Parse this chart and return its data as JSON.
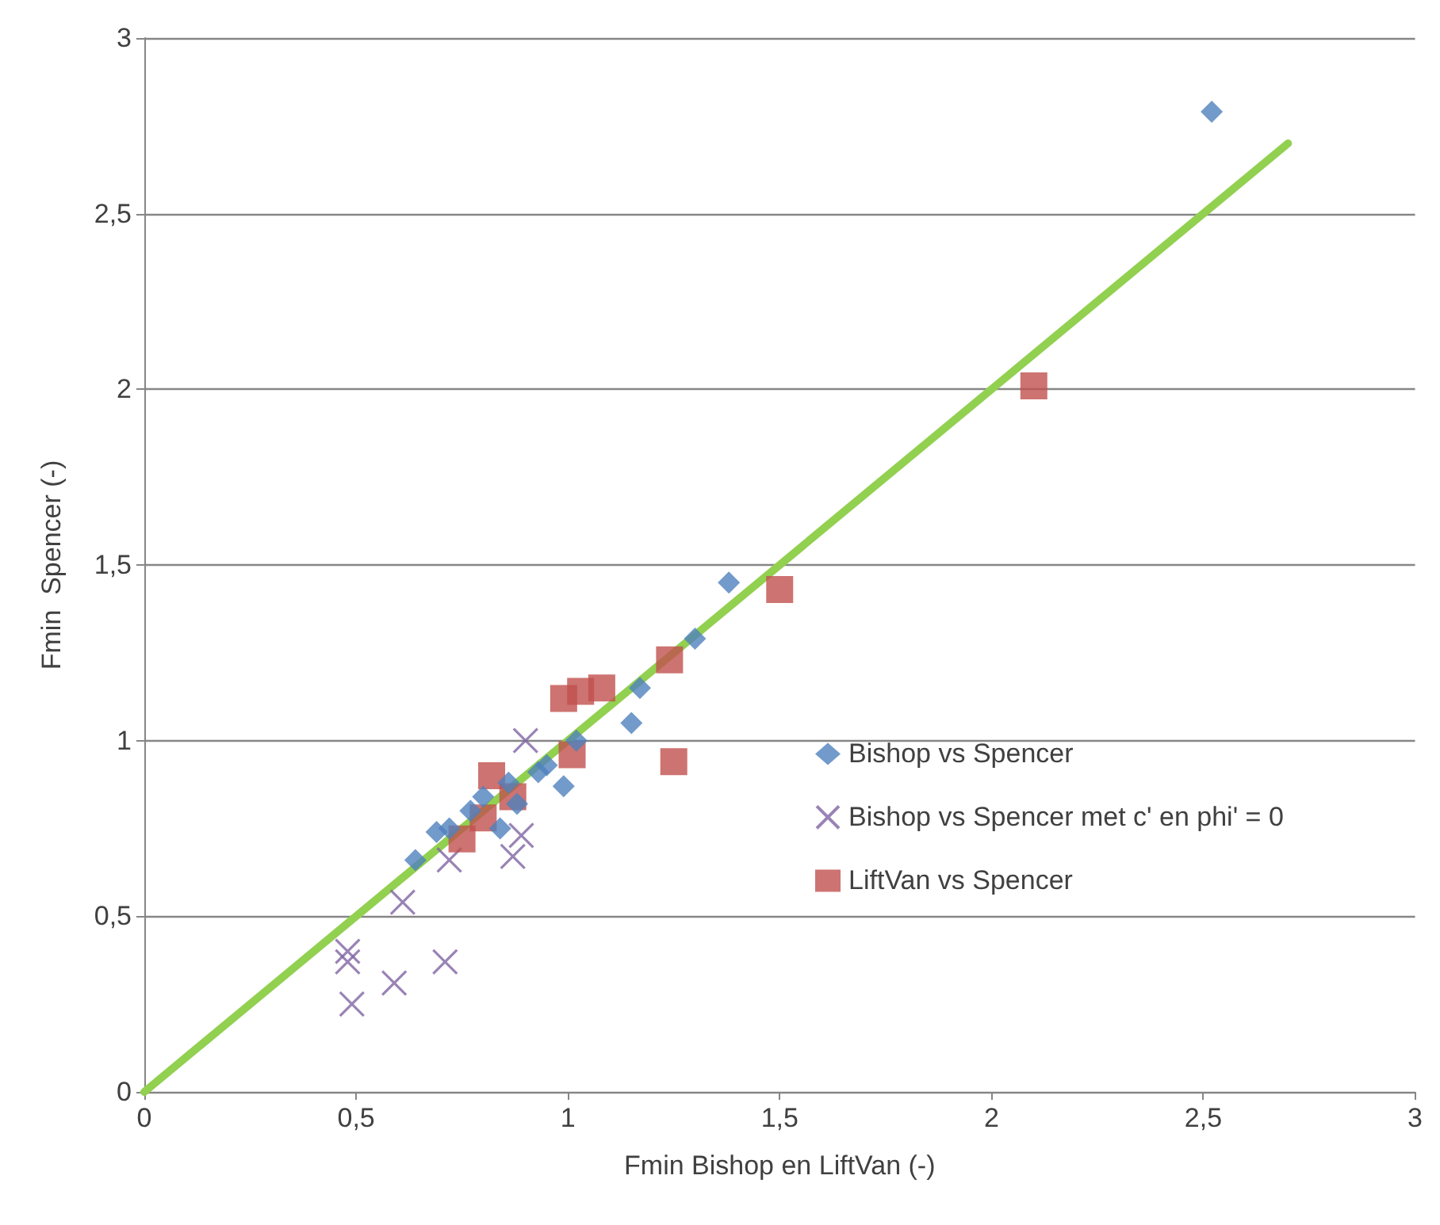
{
  "chart_data": {
    "type": "scatter",
    "xlabel": "Fmin Bishop en LiftVan (-)",
    "ylabel": "Fmin  Spencer (-)",
    "xlim": [
      0,
      3
    ],
    "ylim": [
      0,
      3
    ],
    "xticks": [
      0,
      {
        "value": 0.5,
        "label": "0,5"
      },
      1,
      {
        "value": 1.5,
        "label": "1,5"
      },
      2,
      {
        "value": 2.5,
        "label": "2,5"
      },
      3
    ],
    "yticks": [
      0,
      {
        "value": 0.5,
        "label": "0,5"
      },
      1,
      {
        "value": 1.5,
        "label": "1,5"
      },
      2,
      {
        "value": 2.5,
        "label": "2,5"
      },
      3
    ],
    "grid": "y",
    "legend": "right",
    "series": [
      {
        "name": "Bishop vs Spencer",
        "color": "#4f81bd",
        "marker": "diamond",
        "x": [
          2.52,
          1.38,
          1.3,
          1.17,
          1.15,
          1.02,
          0.95,
          0.93,
          0.99,
          0.88,
          0.86,
          0.77,
          0.8,
          0.72,
          0.69,
          0.64,
          0.84
        ],
        "values": [
          2.79,
          1.45,
          1.29,
          1.15,
          1.05,
          1.0,
          0.93,
          0.91,
          0.87,
          0.82,
          0.88,
          0.8,
          0.84,
          0.75,
          0.74,
          0.66,
          0.75
        ]
      },
      {
        "name": "Bishop vs Spencer met c' en phi' = 0",
        "color": "#8064a2",
        "marker": "cross",
        "x": [
          0.9,
          0.89,
          0.87,
          0.72,
          0.61,
          0.48,
          0.48,
          0.71,
          0.59,
          0.49
        ],
        "values": [
          1.0,
          0.73,
          0.67,
          0.66,
          0.54,
          0.4,
          0.37,
          0.37,
          0.31,
          0.25
        ]
      },
      {
        "name": "LiftVan vs Spencer",
        "color": "#c0504d",
        "marker": "square",
        "x": [
          2.1,
          1.5,
          1.24,
          1.08,
          1.03,
          0.99,
          1.01,
          1.25,
          0.82,
          0.87,
          0.8,
          0.75
        ],
        "values": [
          2.01,
          1.43,
          1.23,
          1.15,
          1.14,
          1.12,
          0.96,
          0.94,
          0.9,
          0.84,
          0.78,
          0.72
        ]
      },
      {
        "type": "line",
        "color": "#92d050",
        "marker": "none",
        "line_style": "solid",
        "x": [
          0,
          2.7
        ],
        "values": [
          0,
          2.7
        ]
      }
    ]
  }
}
